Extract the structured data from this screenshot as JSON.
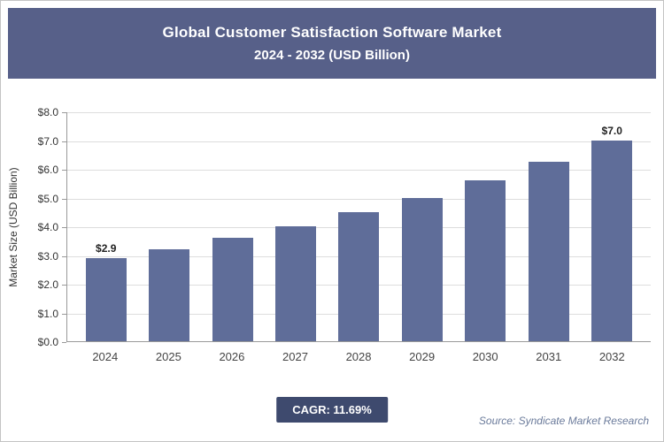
{
  "header": {
    "title_line1": "Global Customer Satisfaction Software Market",
    "title_line2": "2024 - 2032 (USD Billion)"
  },
  "chart_data": {
    "type": "bar",
    "categories": [
      "2024",
      "2025",
      "2026",
      "2027",
      "2028",
      "2029",
      "2030",
      "2031",
      "2032"
    ],
    "values": [
      2.9,
      3.2,
      3.6,
      4.0,
      4.5,
      5.0,
      5.6,
      6.25,
      7.0
    ],
    "bar_labels": [
      "$2.9",
      "",
      "",
      "",
      "",
      "",
      "",
      "",
      "$7.0"
    ],
    "title": "Global Customer Satisfaction Software Market 2024 - 2032 (USD Billion)",
    "xlabel": "",
    "ylabel": "Market Size (USD Billion)",
    "ylim": [
      0,
      8
    ],
    "ytick_step": 1,
    "ytick_prefix": "$",
    "grid": true,
    "legend": "none",
    "bar_color": "#5f6d99"
  },
  "footer": {
    "cagr_label": "CAGR: 11.69%",
    "source": "Source: Syndicate Market Research"
  },
  "colors": {
    "header_bg": "#576089",
    "badge_bg": "#3e4a6e",
    "bar": "#5f6d99",
    "gridline": "#dddddd",
    "axis": "#999999",
    "source_text": "#6b7b9b"
  }
}
